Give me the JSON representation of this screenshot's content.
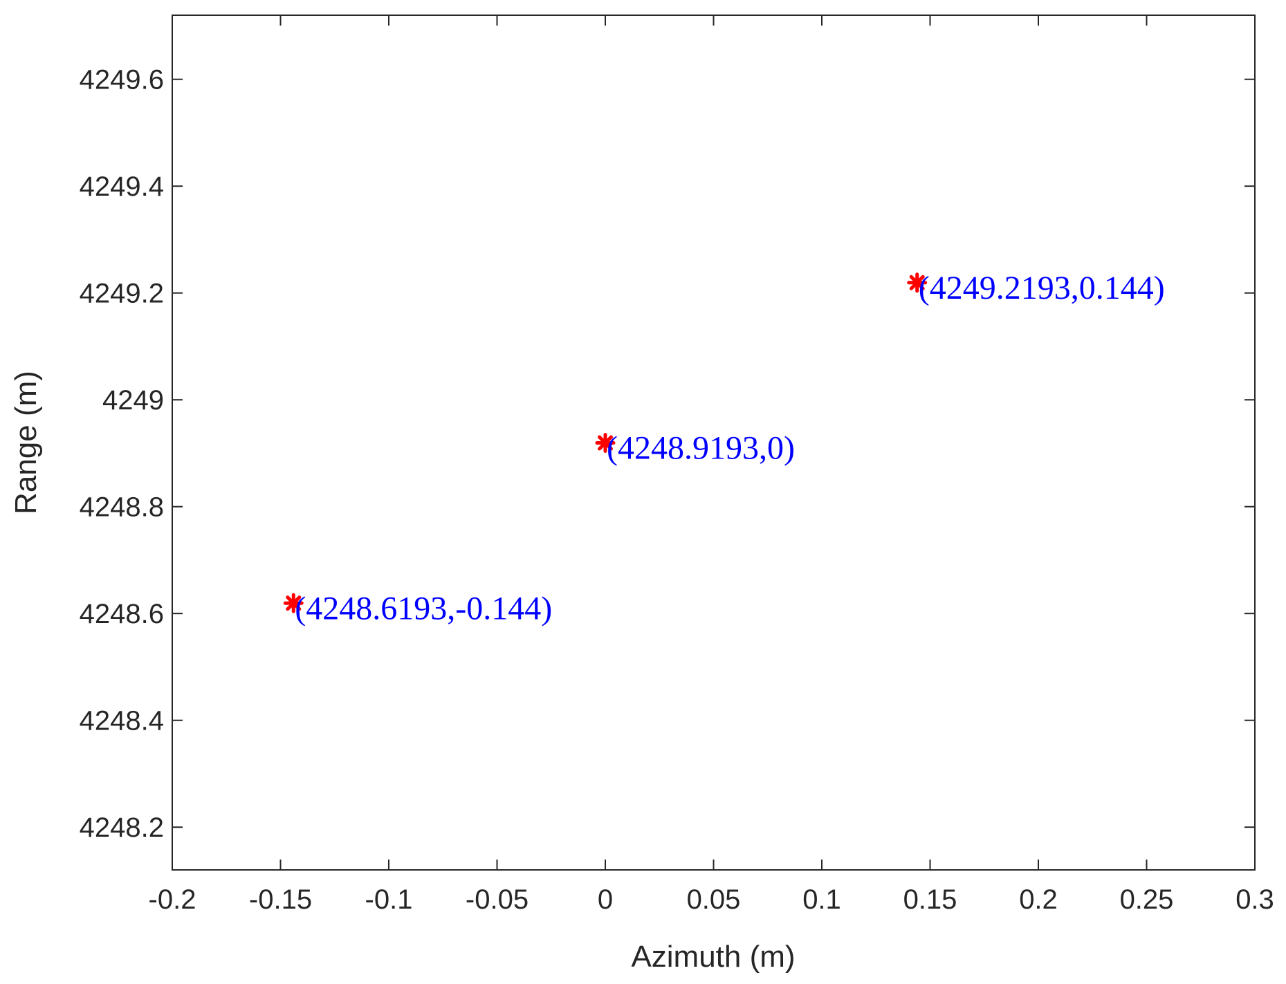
{
  "chart_data": {
    "type": "scatter",
    "xlabel": "Azimuth (m)",
    "ylabel": "Range (m)",
    "xlim": [
      -0.2,
      0.3
    ],
    "ylim": [
      4248.12,
      4249.72
    ],
    "xticks": [
      "-0.2",
      "-0.15",
      "-0.1",
      "-0.05",
      "0",
      "0.05",
      "0.1",
      "0.15",
      "0.2",
      "0.25",
      "0.3"
    ],
    "xtick_values": [
      -0.2,
      -0.15,
      -0.1,
      -0.05,
      0,
      0.05,
      0.1,
      0.15,
      0.2,
      0.25,
      0.3
    ],
    "yticks": [
      "4248.2",
      "4248.4",
      "4248.6",
      "4248.8",
      "4249",
      "4249.2",
      "4249.4",
      "4249.6"
    ],
    "ytick_values": [
      4248.2,
      4248.4,
      4248.6,
      4248.8,
      4249,
      4249.2,
      4249.4,
      4249.6
    ],
    "grid": false,
    "marker": "asterisk",
    "marker_color": "#ff0000",
    "label_color": "#0000ff",
    "points": [
      {
        "x": -0.144,
        "y": 4248.6193,
        "label": "(4248.6193,-0.144)"
      },
      {
        "x": 0,
        "y": 4248.9193,
        "label": "(4248.9193,0)"
      },
      {
        "x": 0.144,
        "y": 4249.2193,
        "label": "(4249.2193,0.144)"
      }
    ]
  }
}
